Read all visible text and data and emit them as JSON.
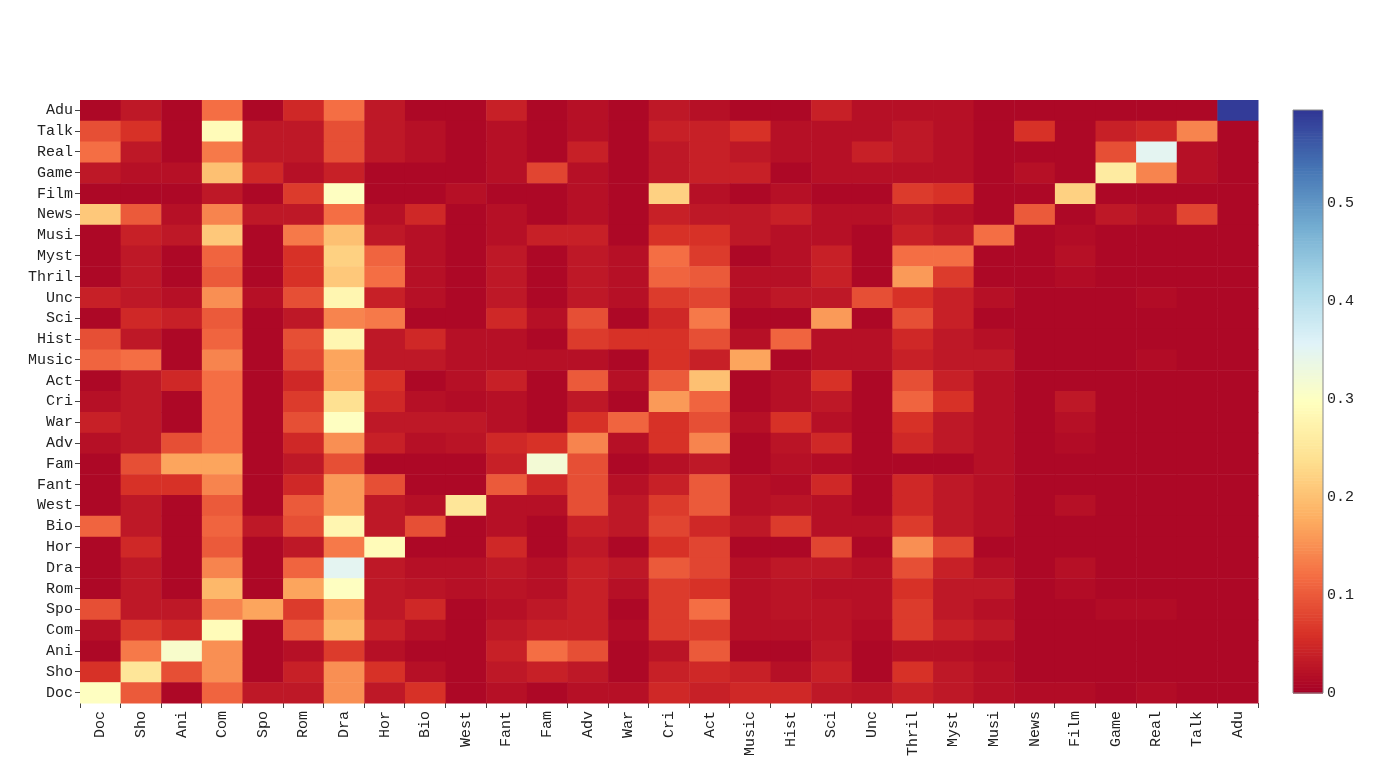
{
  "chart_data": {
    "type": "heatmap",
    "categories": [
      "Doc",
      "Sho",
      "Ani",
      "Com",
      "Spo",
      "Rom",
      "Dra",
      "Hor",
      "Bio",
      "West",
      "Fant",
      "Fam",
      "Adv",
      "War",
      "Cri",
      "Act",
      "Music",
      "Hist",
      "Sci",
      "Unc",
      "Thril",
      "Myst",
      "Musi",
      "News",
      "Film",
      "Game",
      "Real",
      "Talk",
      "Adu"
    ],
    "y_categories": [
      "Adu",
      "Talk",
      "Real",
      "Game",
      "Film",
      "News",
      "Musi",
      "Myst",
      "Thril",
      "Unc",
      "Sci",
      "Hist",
      "Music",
      "Act",
      "Cri",
      "War",
      "Adv",
      "Fam",
      "Fant",
      "West",
      "Bio",
      "Hor",
      "Dra",
      "Rom",
      "Spo",
      "Com",
      "Ani",
      "Sho",
      "Doc"
    ],
    "cells": [
      [
        0.01,
        0.03,
        0.01,
        0.12,
        0.01,
        0.05,
        0.12,
        0.03,
        0.01,
        0.01,
        0.04,
        0.01,
        0.02,
        0.01,
        0.03,
        0.02,
        0.01,
        0.01,
        0.04,
        0.02,
        0.02,
        0.02,
        0.01,
        0.01,
        0.01,
        0.01,
        0.01,
        0.01,
        0.59
      ],
      [
        0.09,
        0.06,
        0.01,
        0.29,
        0.03,
        0.03,
        0.09,
        0.03,
        0.02,
        0.01,
        0.02,
        0.01,
        0.02,
        0.01,
        0.04,
        0.04,
        0.06,
        0.02,
        0.02,
        0.02,
        0.03,
        0.02,
        0.01,
        0.06,
        0.01,
        0.04,
        0.05,
        0.14,
        0.01
      ],
      [
        0.12,
        0.03,
        0.01,
        0.13,
        0.03,
        0.03,
        0.09,
        0.03,
        0.02,
        0.01,
        0.02,
        0.01,
        0.04,
        0.01,
        0.03,
        0.04,
        0.03,
        0.02,
        0.02,
        0.04,
        0.03,
        0.02,
        0.01,
        0.01,
        0.01,
        0.09,
        0.35,
        0.02,
        0.01
      ],
      [
        0.03,
        0.02,
        0.02,
        0.2,
        0.05,
        0.02,
        0.04,
        0.01,
        0.01,
        0.01,
        0.02,
        0.08,
        0.02,
        0.01,
        0.03,
        0.04,
        0.04,
        0.01,
        0.02,
        0.02,
        0.02,
        0.02,
        0.01,
        0.02,
        0.01,
        0.26,
        0.14,
        0.02,
        0.01
      ],
      [
        0.01,
        0.01,
        0.01,
        0.03,
        0.01,
        0.07,
        0.3,
        0.01,
        0.01,
        0.02,
        0.01,
        0.01,
        0.02,
        0.01,
        0.22,
        0.02,
        0.01,
        0.02,
        0.01,
        0.01,
        0.07,
        0.06,
        0.01,
        0.01,
        0.22,
        0.01,
        0.01,
        0.01,
        0.01
      ],
      [
        0.21,
        0.1,
        0.02,
        0.14,
        0.03,
        0.03,
        0.12,
        0.02,
        0.05,
        0.01,
        0.02,
        0.01,
        0.02,
        0.01,
        0.04,
        0.03,
        0.03,
        0.04,
        0.02,
        0.02,
        0.03,
        0.02,
        0.01,
        0.1,
        0.01,
        0.03,
        0.02,
        0.08,
        0.01
      ],
      [
        0.01,
        0.04,
        0.03,
        0.21,
        0.01,
        0.13,
        0.2,
        0.03,
        0.02,
        0.01,
        0.02,
        0.04,
        0.04,
        0.01,
        0.06,
        0.06,
        0.03,
        0.02,
        0.02,
        0.01,
        0.04,
        0.03,
        0.12,
        0.01,
        0.015,
        0.01,
        0.01,
        0.01,
        0.01
      ],
      [
        0.01,
        0.03,
        0.01,
        0.11,
        0.01,
        0.06,
        0.22,
        0.11,
        0.02,
        0.01,
        0.03,
        0.01,
        0.03,
        0.02,
        0.12,
        0.07,
        0.01,
        0.02,
        0.04,
        0.01,
        0.12,
        0.12,
        0.01,
        0.01,
        0.02,
        0.01,
        0.01,
        0.01,
        0.01
      ],
      [
        0.01,
        0.03,
        0.01,
        0.1,
        0.01,
        0.06,
        0.21,
        0.12,
        0.02,
        0.01,
        0.03,
        0.01,
        0.03,
        0.02,
        0.11,
        0.1,
        0.02,
        0.02,
        0.04,
        0.01,
        0.16,
        0.07,
        0.01,
        0.01,
        0.015,
        0.01,
        0.01,
        0.01,
        0.01
      ],
      [
        0.04,
        0.03,
        0.02,
        0.15,
        0.02,
        0.09,
        0.28,
        0.04,
        0.02,
        0.01,
        0.03,
        0.01,
        0.03,
        0.02,
        0.07,
        0.08,
        0.02,
        0.03,
        0.03,
        0.09,
        0.06,
        0.04,
        0.02,
        0.01,
        0.01,
        0.01,
        0.015,
        0.01,
        0.01
      ],
      [
        0.01,
        0.05,
        0.04,
        0.1,
        0.01,
        0.03,
        0.14,
        0.13,
        0.01,
        0.01,
        0.05,
        0.02,
        0.09,
        0.01,
        0.05,
        0.13,
        0.01,
        0.01,
        0.16,
        0.01,
        0.09,
        0.04,
        0.01,
        0.01,
        0.01,
        0.01,
        0.01,
        0.01,
        0.01
      ],
      [
        0.09,
        0.03,
        0.01,
        0.11,
        0.01,
        0.09,
        0.28,
        0.03,
        0.05,
        0.02,
        0.02,
        0.01,
        0.07,
        0.06,
        0.06,
        0.09,
        0.02,
        0.11,
        0.02,
        0.02,
        0.05,
        0.03,
        0.02,
        0.01,
        0.01,
        0.01,
        0.01,
        0.01,
        0.01
      ],
      [
        0.11,
        0.12,
        0.01,
        0.14,
        0.01,
        0.08,
        0.17,
        0.03,
        0.03,
        0.02,
        0.02,
        0.02,
        0.02,
        0.01,
        0.06,
        0.04,
        0.17,
        0.01,
        0.02,
        0.02,
        0.04,
        0.03,
        0.03,
        0.01,
        0.01,
        0.01,
        0.015,
        0.01,
        0.01
      ],
      [
        0.01,
        0.03,
        0.05,
        0.12,
        0.01,
        0.05,
        0.17,
        0.06,
        0.01,
        0.02,
        0.04,
        0.01,
        0.1,
        0.02,
        0.1,
        0.2,
        0.01,
        0.02,
        0.06,
        0.01,
        0.09,
        0.04,
        0.02,
        0.01,
        0.01,
        0.01,
        0.01,
        0.01,
        0.01
      ],
      [
        0.02,
        0.03,
        0.01,
        0.12,
        0.01,
        0.07,
        0.24,
        0.05,
        0.02,
        0.015,
        0.02,
        0.01,
        0.03,
        0.01,
        0.16,
        0.11,
        0.01,
        0.02,
        0.03,
        0.01,
        0.11,
        0.06,
        0.02,
        0.01,
        0.03,
        0.01,
        0.01,
        0.01,
        0.01
      ],
      [
        0.04,
        0.03,
        0.01,
        0.12,
        0.01,
        0.09,
        0.3,
        0.03,
        0.03,
        0.03,
        0.02,
        0.01,
        0.06,
        0.11,
        0.06,
        0.09,
        0.02,
        0.06,
        0.02,
        0.01,
        0.06,
        0.03,
        0.02,
        0.01,
        0.02,
        0.01,
        0.01,
        0.01,
        0.01
      ],
      [
        0.02,
        0.03,
        0.09,
        0.12,
        0.01,
        0.05,
        0.15,
        0.04,
        0.02,
        0.025,
        0.05,
        0.06,
        0.14,
        0.02,
        0.06,
        0.14,
        0.01,
        0.025,
        0.05,
        0.01,
        0.05,
        0.03,
        0.02,
        0.01,
        0.015,
        0.01,
        0.01,
        0.01,
        0.01
      ],
      [
        0.01,
        0.09,
        0.17,
        0.17,
        0.01,
        0.03,
        0.09,
        0.01,
        0.01,
        0.01,
        0.04,
        0.32,
        0.09,
        0.01,
        0.02,
        0.03,
        0.01,
        0.02,
        0.015,
        0.01,
        0.01,
        0.01,
        0.02,
        0.01,
        0.01,
        0.01,
        0.01,
        0.01,
        0.01
      ],
      [
        0.01,
        0.06,
        0.06,
        0.14,
        0.01,
        0.05,
        0.16,
        0.09,
        0.01,
        0.01,
        0.1,
        0.05,
        0.09,
        0.02,
        0.04,
        0.1,
        0.02,
        0.015,
        0.05,
        0.01,
        0.05,
        0.03,
        0.02,
        0.01,
        0.01,
        0.01,
        0.01,
        0.01,
        0.01
      ],
      [
        0.01,
        0.03,
        0.01,
        0.1,
        0.01,
        0.1,
        0.16,
        0.03,
        0.02,
        0.25,
        0.02,
        0.02,
        0.09,
        0.03,
        0.07,
        0.1,
        0.02,
        0.025,
        0.02,
        0.01,
        0.05,
        0.03,
        0.02,
        0.01,
        0.02,
        0.01,
        0.01,
        0.01,
        0.01
      ],
      [
        0.11,
        0.03,
        0.01,
        0.11,
        0.03,
        0.09,
        0.28,
        0.03,
        0.09,
        0.01,
        0.02,
        0.01,
        0.04,
        0.03,
        0.08,
        0.05,
        0.03,
        0.07,
        0.02,
        0.02,
        0.07,
        0.03,
        0.02,
        0.01,
        0.01,
        0.01,
        0.01,
        0.01,
        0.01
      ],
      [
        0.01,
        0.05,
        0.01,
        0.1,
        0.01,
        0.03,
        0.13,
        0.29,
        0.01,
        0.01,
        0.05,
        0.01,
        0.03,
        0.01,
        0.06,
        0.08,
        0.01,
        0.01,
        0.08,
        0.01,
        0.15,
        0.08,
        0.01,
        0.01,
        0.01,
        0.01,
        0.01,
        0.01,
        0.01
      ],
      [
        0.01,
        0.03,
        0.01,
        0.14,
        0.01,
        0.11,
        0.35,
        0.03,
        0.02,
        0.02,
        0.03,
        0.02,
        0.04,
        0.03,
        0.1,
        0.08,
        0.02,
        0.03,
        0.03,
        0.02,
        0.09,
        0.04,
        0.02,
        0.01,
        0.02,
        0.01,
        0.01,
        0.01,
        0.01
      ],
      [
        0.01,
        0.03,
        0.01,
        0.19,
        0.01,
        0.17,
        0.3,
        0.03,
        0.025,
        0.02,
        0.025,
        0.02,
        0.04,
        0.02,
        0.07,
        0.06,
        0.02,
        0.025,
        0.02,
        0.02,
        0.06,
        0.03,
        0.03,
        0.01,
        0.015,
        0.01,
        0.01,
        0.01,
        0.01
      ],
      [
        0.09,
        0.03,
        0.03,
        0.14,
        0.17,
        0.07,
        0.17,
        0.03,
        0.05,
        0.01,
        0.02,
        0.03,
        0.04,
        0.01,
        0.07,
        0.12,
        0.02,
        0.025,
        0.025,
        0.02,
        0.07,
        0.03,
        0.02,
        0.01,
        0.01,
        0.015,
        0.015,
        0.01,
        0.01
      ],
      [
        0.02,
        0.07,
        0.05,
        0.29,
        0.01,
        0.1,
        0.19,
        0.04,
        0.02,
        0.01,
        0.03,
        0.04,
        0.04,
        0.015,
        0.07,
        0.07,
        0.02,
        0.02,
        0.025,
        0.015,
        0.07,
        0.04,
        0.03,
        0.01,
        0.01,
        0.01,
        0.01,
        0.01,
        0.01
      ],
      [
        0.01,
        0.13,
        0.31,
        0.15,
        0.01,
        0.02,
        0.07,
        0.02,
        0.01,
        0.01,
        0.04,
        0.12,
        0.09,
        0.01,
        0.025,
        0.1,
        0.01,
        0.01,
        0.03,
        0.01,
        0.02,
        0.02,
        0.015,
        0.01,
        0.01,
        0.01,
        0.01,
        0.01,
        0.01
      ],
      [
        0.06,
        0.25,
        0.09,
        0.15,
        0.01,
        0.04,
        0.15,
        0.06,
        0.02,
        0.01,
        0.03,
        0.04,
        0.03,
        0.01,
        0.04,
        0.05,
        0.04,
        0.02,
        0.04,
        0.01,
        0.06,
        0.03,
        0.02,
        0.01,
        0.01,
        0.01,
        0.01,
        0.01,
        0.01
      ],
      [
        0.3,
        0.1,
        0.01,
        0.11,
        0.03,
        0.03,
        0.15,
        0.03,
        0.06,
        0.01,
        0.02,
        0.01,
        0.02,
        0.02,
        0.05,
        0.04,
        0.05,
        0.05,
        0.03,
        0.025,
        0.04,
        0.03,
        0.02,
        0.015,
        0.015,
        0.01,
        0.015,
        0.01,
        0.01
      ]
    ],
    "clim": [
      0,
      0.595
    ],
    "cticks": [
      0,
      0.1,
      0.2,
      0.3,
      0.4,
      0.5
    ]
  }
}
